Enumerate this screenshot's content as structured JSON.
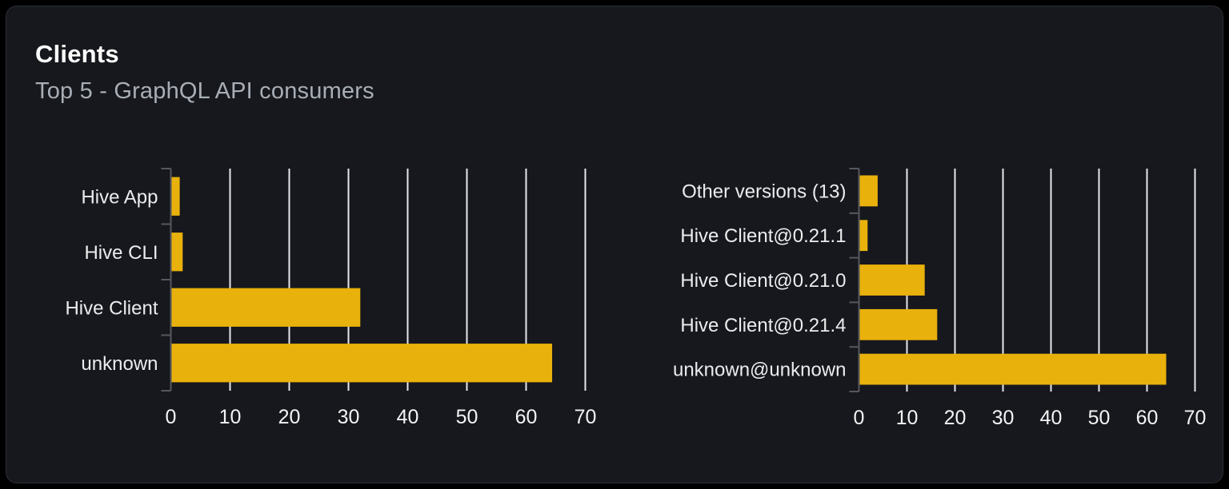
{
  "card": {
    "title": "Clients",
    "subtitle": "Top 5 - GraphQL API consumers"
  },
  "colors": {
    "page_background": "#000000",
    "card_background": "#16181d",
    "card_border": "#2b2e35",
    "bar": "#e9b10b",
    "gridline": "#e5e7eb",
    "axis": "#56585f",
    "label": "#ececee",
    "tick_label": "#f3f3f4",
    "title": "#ffffff",
    "subtitle": "#a9aeb6"
  },
  "chart_data": [
    {
      "type": "bar",
      "orientation": "horizontal",
      "title": "",
      "xlabel": "",
      "ylabel": "",
      "legend_position": "none",
      "grid": true,
      "categories": [
        "Hive App",
        "Hive CLI",
        "Hive Client",
        "unknown"
      ],
      "values": [
        1.5,
        2,
        32,
        64.4
      ],
      "xlim": [
        0,
        70
      ],
      "xticks": [
        0,
        10,
        20,
        30,
        40,
        50,
        60,
        70
      ]
    },
    {
      "type": "bar",
      "orientation": "horizontal",
      "title": "",
      "xlabel": "",
      "ylabel": "",
      "legend_position": "none",
      "grid": true,
      "categories": [
        "Other versions (13)",
        "Hive Client@0.21.1",
        "Hive Client@0.21.0",
        "Hive Client@0.21.4",
        "unknown@unknown"
      ],
      "values": [
        3.9,
        1.8,
        13.7,
        16.3,
        64
      ],
      "xlim": [
        0,
        70
      ],
      "xticks": [
        0,
        10,
        20,
        30,
        40,
        50,
        60,
        70
      ]
    }
  ]
}
